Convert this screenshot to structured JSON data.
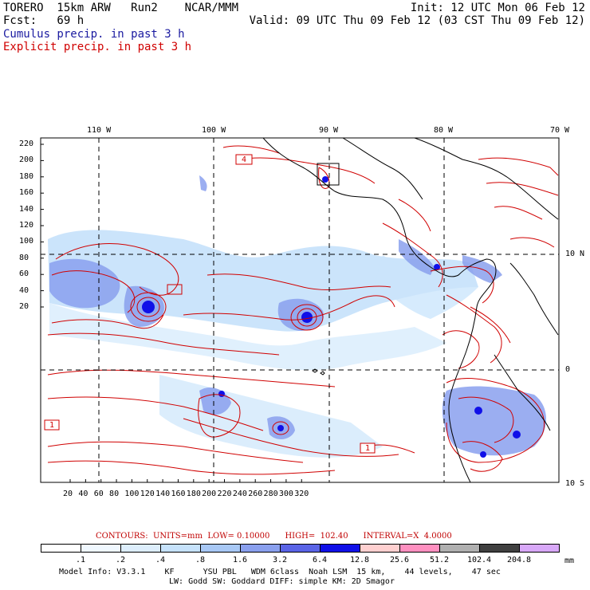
{
  "header": {
    "model": "TORERO  15km ARW   Run2    NCAR/MMM",
    "init": "Init: 12 UTC Mon 06 Feb 12",
    "fcst": "Fcst:   69 h",
    "valid": "Valid: 09 UTC Thu 09 Feb 12 (03 CST Thu 09 Feb 12)",
    "line_cumulus": "Cumulus precip. in past 3 h",
    "line_explicit": "Explicit precip. in past 3 h",
    "colors": {
      "cumulus": "#1a1aa0",
      "explicit": "#d00000"
    }
  },
  "map": {
    "lon_labels_top": [
      "110 W",
      "100 W",
      "90 W",
      "80 W",
      "70 W"
    ],
    "lat_labels_right": [
      "10 N",
      "0",
      "10 S"
    ],
    "y_ticks": [
      "220",
      "200",
      "180",
      "160",
      "140",
      "120",
      "100",
      "80",
      "60",
      "40",
      "20"
    ],
    "x_ticks": [
      "20",
      "40",
      "60",
      "80",
      "100",
      "120",
      "140",
      "160",
      "180",
      "200",
      "220",
      "240",
      "260",
      "280",
      "300",
      "320"
    ],
    "contour_labels": [
      "4",
      "1",
      "1"
    ]
  },
  "contours_info": {
    "text": "CONTOURS:  UNITS=mm  LOW= 0.10000      HIGH=  102.40      INTERVAL=X  4.0000",
    "color": "#c00000"
  },
  "legend": {
    "unit": "mm",
    "labels": [
      ".1",
      ".2",
      ".4",
      ".8",
      "1.6",
      "3.2",
      "6.4",
      "12.8",
      "25.6",
      "51.2",
      "102.4",
      "204.8"
    ],
    "colors": [
      "#ffffff",
      "#f0f8ff",
      "#ddeefc",
      "#c6e2fb",
      "#a8c8f5",
      "#8aa0ee",
      "#5a64e6",
      "#1010e8",
      "#ffd0d0",
      "#ff90c0",
      "#b0b0b0",
      "#404040",
      "#d8a8f8"
    ]
  },
  "model_info": {
    "line1": "Model Info: V3.3.1    KF      YSU PBL   WDM 6class  Noah LSM  15 km,    44 levels,    47 sec",
    "line2": "LW: Godd SW: Goddard DIFF: simple KM: 2D Smagor"
  }
}
